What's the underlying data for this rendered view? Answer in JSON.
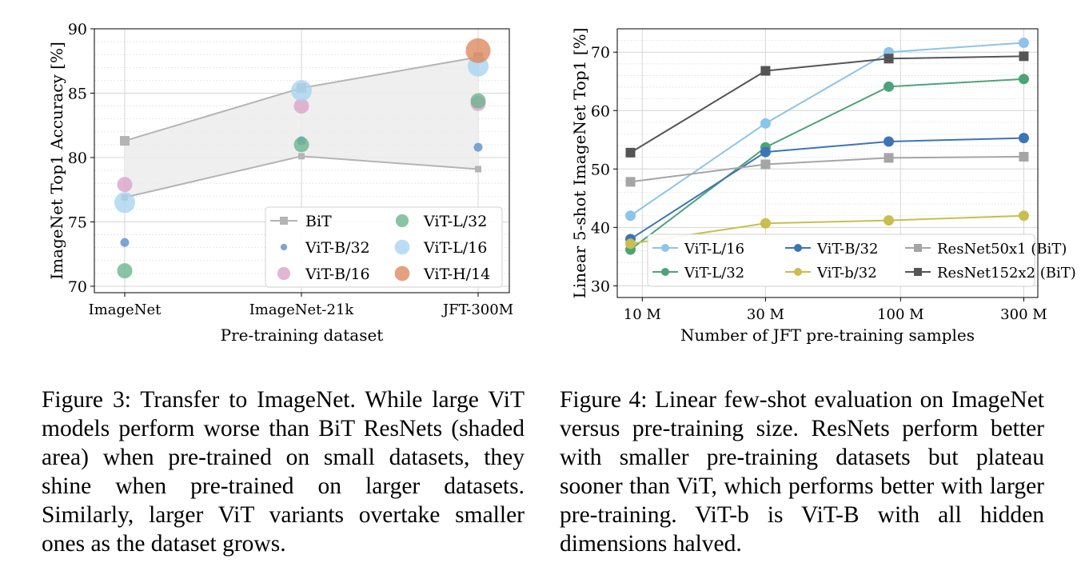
{
  "chart_data": [
    {
      "type": "scatter",
      "xlabel": "Pre-training dataset",
      "ylabel": "ImageNet Top1 Accuracy [%]",
      "categories": [
        "ImageNet",
        "ImageNet-21k",
        "JFT-300M"
      ],
      "ylim": [
        69.5,
        90
      ],
      "yticks": [
        70,
        75,
        80,
        85,
        90
      ],
      "grid": true,
      "legend_position": "bottom-right",
      "bit_band": {
        "name": "BiT",
        "upper": [
          81.3,
          85.4,
          87.8
        ],
        "lower": [
          76.9,
          80.1,
          79.1
        ],
        "color": "#b4b4b4",
        "fill": "#ececec"
      },
      "series": [
        {
          "name": "BiT",
          "marker": "square",
          "color": "#b4b4b4",
          "size": 0
        },
        {
          "name": "ViT-B/32",
          "color": "#5b8fc9",
          "size": 5.5,
          "values": [
            73.4,
            81.3,
            80.8
          ]
        },
        {
          "name": "ViT-B/16",
          "color": "#dca3c9",
          "size": 9.5,
          "values": [
            77.9,
            84.0,
            84.2
          ]
        },
        {
          "name": "ViT-L/32",
          "color": "#6cb58f",
          "size": 9.5,
          "values": [
            71.2,
            81.0,
            84.4
          ]
        },
        {
          "name": "ViT-L/16",
          "color": "#a9d5f1",
          "size": 13,
          "values": [
            76.5,
            85.2,
            87.1
          ]
        },
        {
          "name": "ViT-H/14",
          "color": "#dd8a5f",
          "size": 15.5,
          "values": [
            null,
            null,
            88.3
          ]
        }
      ]
    },
    {
      "type": "line",
      "xlabel": "Number of JFT pre-training samples",
      "ylabel": "Linear 5-shot ImageNet Top1 [%]",
      "x": [
        9,
        30,
        90,
        300
      ],
      "x_scale": "log",
      "xticks": [
        10,
        30,
        100,
        300
      ],
      "xtick_labels": [
        "10 M",
        "30 M",
        "100 M",
        "300 M"
      ],
      "xlim": [
        8,
        340
      ],
      "ylim": [
        28,
        74
      ],
      "yticks": [
        30,
        40,
        50,
        60,
        70
      ],
      "grid": true,
      "legend_position": "bottom-right",
      "series": [
        {
          "name": "ViT-L/16",
          "color": "#8cc4ea",
          "marker": "circle",
          "values": [
            42.0,
            57.8,
            70.0,
            71.6
          ]
        },
        {
          "name": "ViT-L/32",
          "color": "#4da378",
          "marker": "circle",
          "values": [
            36.2,
            53.7,
            64.1,
            65.4
          ]
        },
        {
          "name": "ViT-B/32",
          "color": "#3c75b5",
          "marker": "circle",
          "values": [
            38.0,
            52.9,
            54.7,
            55.3
          ]
        },
        {
          "name": "ViT-b/32",
          "color": "#c9be4e",
          "marker": "circle",
          "values": [
            37.2,
            40.7,
            41.2,
            42.0
          ]
        },
        {
          "name": "ResNet50x1 (BiT)",
          "color": "#a5a5a5",
          "marker": "square",
          "values": [
            47.8,
            50.8,
            51.9,
            52.1
          ]
        },
        {
          "name": "ResNet152x2 (BiT)",
          "color": "#555555",
          "marker": "square",
          "values": [
            52.8,
            66.8,
            68.9,
            69.3
          ]
        }
      ]
    }
  ],
  "captions": {
    "fig3": "Figure 3:  Transfer to ImageNet.  While large ViT models perform worse than BiT ResNets (shaded area) when pre-trained on small datasets, they shine when pre-trained on larger datasets. Similarly, larger ViT variants overtake smaller ones as the dataset grows.",
    "fig4": "Figure 4: Linear few-shot evaluation on ImageNet versus pre-training size. ResNets perform better with smaller pre-training datasets but plateau sooner than ViT, which performs better with larger pre-training. ViT-b is ViT-B with all hidden dimensions halved."
  }
}
